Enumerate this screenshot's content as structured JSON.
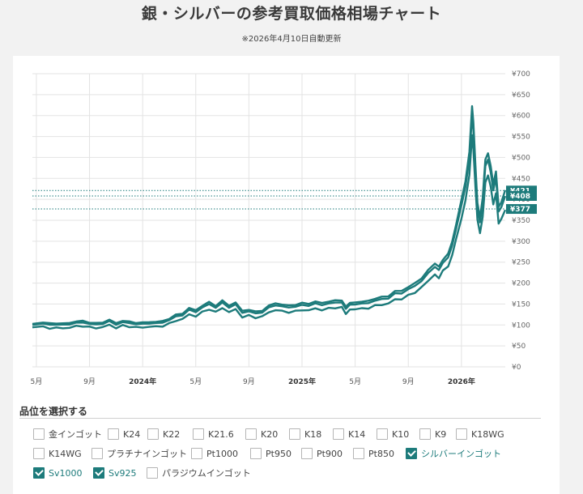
{
  "header": {
    "title": "銀・シルバーの参考買取価格相場チャート",
    "subtitle": "※2026年4月10日自動更新"
  },
  "selector": {
    "title": "品位を選択する",
    "options": [
      {
        "label": "金インゴット",
        "checked": false
      },
      {
        "label": "K24",
        "checked": false
      },
      {
        "label": "K22",
        "checked": false
      },
      {
        "label": "K21.6",
        "checked": false
      },
      {
        "label": "K20",
        "checked": false
      },
      {
        "label": "K18",
        "checked": false
      },
      {
        "label": "K14",
        "checked": false
      },
      {
        "label": "K10",
        "checked": false
      },
      {
        "label": "K9",
        "checked": false
      },
      {
        "label": "K18WG",
        "checked": false
      },
      {
        "label": "K14WG",
        "checked": false
      },
      {
        "label": "プラチナインゴット",
        "checked": false
      },
      {
        "label": "Pt1000",
        "checked": false
      },
      {
        "label": "Pt950",
        "checked": false
      },
      {
        "label": "Pt900",
        "checked": false
      },
      {
        "label": "Pt850",
        "checked": false
      },
      {
        "label": "シルバーインゴット",
        "checked": true
      },
      {
        "label": "Sv1000",
        "checked": true
      },
      {
        "label": "Sv925",
        "checked": true
      },
      {
        "label": "パラジウムインゴット",
        "checked": false
      }
    ]
  },
  "colors": {
    "series": "#1d7b7b",
    "grid": "#e3e3e3",
    "checked": "#1d7b7b"
  },
  "chart_data": {
    "type": "line",
    "yticks": [
      "¥0",
      "¥50",
      "¥100",
      "¥150",
      "¥200",
      "¥250",
      "¥300",
      "¥350",
      "¥400",
      "¥450",
      "¥500",
      "¥550",
      "¥600",
      "¥650",
      "¥700"
    ],
    "xticks": [
      {
        "label": "5月",
        "year": false,
        "t": 0
      },
      {
        "label": "9月",
        "year": false,
        "t": 4
      },
      {
        "label": "2024年",
        "year": true,
        "t": 8
      },
      {
        "label": "5月",
        "year": false,
        "t": 12
      },
      {
        "label": "9月",
        "year": false,
        "t": 16
      },
      {
        "label": "2025年",
        "year": true,
        "t": 20
      },
      {
        "label": "5月",
        "year": false,
        "t": 24
      },
      {
        "label": "9月",
        "year": false,
        "t": 28
      },
      {
        "label": "2026年",
        "year": true,
        "t": 32
      }
    ],
    "ylim": [
      0,
      700
    ],
    "xlim": [
      -0.3,
      35.3
    ],
    "grid": true,
    "series": [
      {
        "id": "silver-ingot",
        "end_label": "¥421",
        "end_value": 421,
        "offset": 1.12
      },
      {
        "id": "sv1000",
        "end_label": "¥408",
        "end_value": 408,
        "offset": 1.085
      },
      {
        "id": "sv925",
        "end_label": "¥377",
        "end_value": 377,
        "offset": 1.0
      }
    ],
    "base_points": [
      [
        -0.3,
        93
      ],
      [
        0.5,
        95
      ],
      [
        1,
        92
      ],
      [
        1.5,
        94
      ],
      [
        2,
        91
      ],
      [
        2.5,
        95
      ],
      [
        3,
        96
      ],
      [
        3.5,
        98
      ],
      [
        4,
        95
      ],
      [
        4.5,
        92
      ],
      [
        5,
        96
      ],
      [
        5.5,
        99
      ],
      [
        6,
        94
      ],
      [
        6.5,
        98
      ],
      [
        7,
        96
      ],
      [
        7.5,
        95
      ],
      [
        8,
        93
      ],
      [
        8.5,
        97
      ],
      [
        9,
        95
      ],
      [
        9.5,
        98
      ],
      [
        10,
        103
      ],
      [
        10.5,
        110
      ],
      [
        11,
        115
      ],
      [
        11.5,
        124
      ],
      [
        12,
        122
      ],
      [
        12.5,
        130
      ],
      [
        13,
        138
      ],
      [
        13.5,
        131
      ],
      [
        14,
        140
      ],
      [
        14.5,
        132
      ],
      [
        15,
        136
      ],
      [
        15.5,
        120
      ],
      [
        16,
        122
      ],
      [
        16.5,
        117
      ],
      [
        17,
        121
      ],
      [
        17.5,
        129
      ],
      [
        18,
        137
      ],
      [
        18.5,
        132
      ],
      [
        19,
        131
      ],
      [
        19.5,
        133
      ],
      [
        20,
        135
      ],
      [
        20.5,
        136
      ],
      [
        21,
        138
      ],
      [
        21.5,
        137
      ],
      [
        22,
        139
      ],
      [
        22.5,
        141
      ],
      [
        23,
        143
      ],
      [
        23.3,
        128
      ],
      [
        23.6,
        135
      ],
      [
        24,
        139
      ],
      [
        24.5,
        138
      ],
      [
        25,
        141
      ],
      [
        25.5,
        146
      ],
      [
        26,
        148
      ],
      [
        26.5,
        152
      ],
      [
        27,
        160
      ],
      [
        27.5,
        163
      ],
      [
        28,
        170
      ],
      [
        28.5,
        178
      ],
      [
        29,
        190
      ],
      [
        29.5,
        205
      ],
      [
        30,
        222
      ],
      [
        30.3,
        212
      ],
      [
        30.6,
        228
      ],
      [
        31,
        242
      ],
      [
        31.3,
        265
      ],
      [
        31.6,
        305
      ],
      [
        32,
        355
      ],
      [
        32.3,
        395
      ],
      [
        32.6,
        460
      ],
      [
        32.8,
        555
      ],
      [
        32.9,
        520
      ],
      [
        33.05,
        430
      ],
      [
        33.2,
        350
      ],
      [
        33.4,
        320
      ],
      [
        33.6,
        360
      ],
      [
        33.8,
        440
      ],
      [
        34,
        455
      ],
      [
        34.2,
        430
      ],
      [
        34.4,
        390
      ],
      [
        34.6,
        415
      ],
      [
        34.8,
        340
      ],
      [
        35,
        352
      ],
      [
        35.3,
        377
      ]
    ]
  }
}
